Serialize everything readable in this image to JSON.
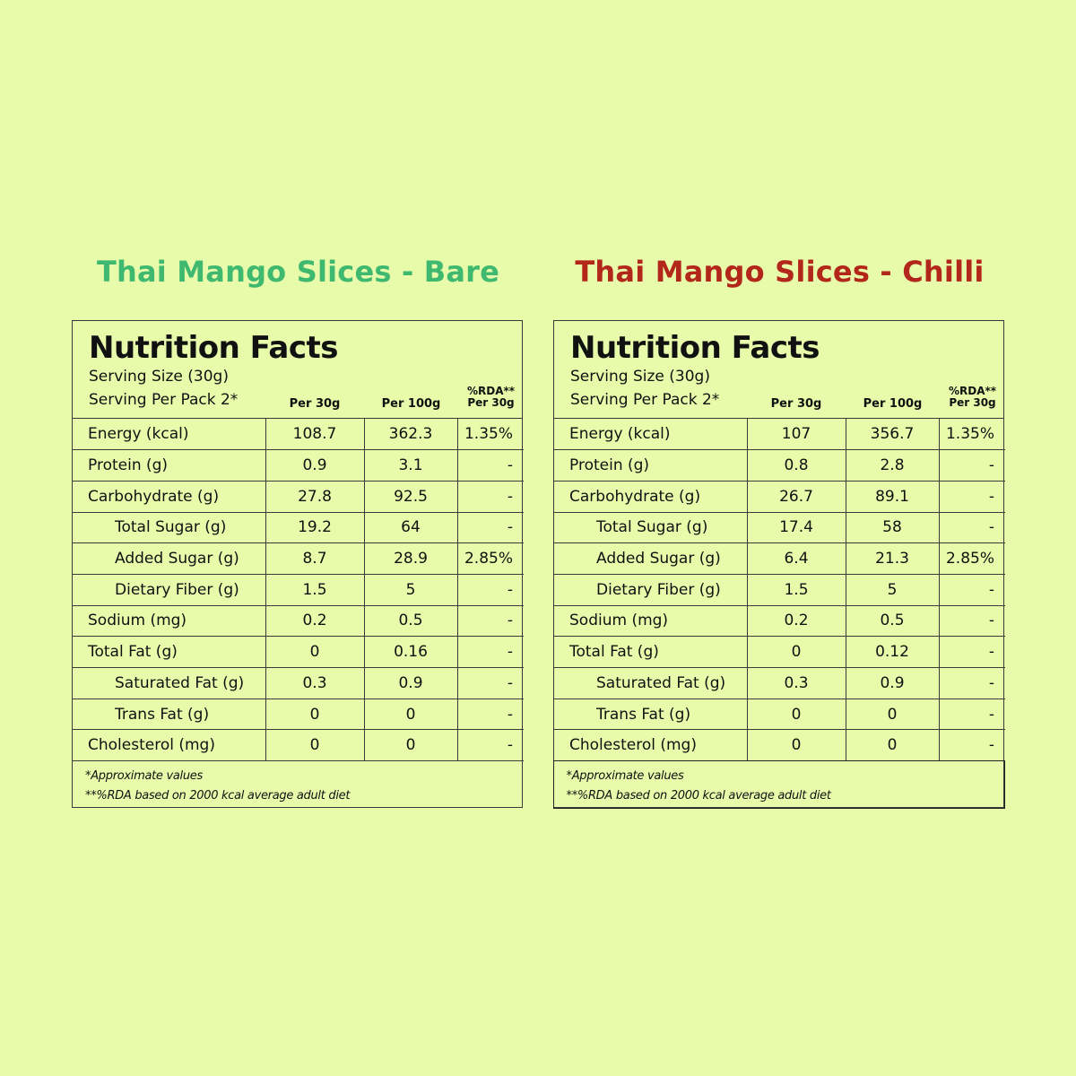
{
  "panels": [
    {
      "product_title": "Thai Mango Slices - Bare",
      "title_color": "#3fb96f",
      "heading": "Nutrition Facts",
      "serving_size": "Serving Size (30g)",
      "serving_per_pack": "Serving Per Pack  2*",
      "col_headers": [
        "Per 30g",
        "Per 100g",
        "%RDA**",
        "Per 30g"
      ],
      "rows": [
        {
          "label": "Energy (kcal)",
          "per30": "108.7",
          "per100": "362.3",
          "rda": "1.35%",
          "indent": false
        },
        {
          "label": "Protein (g)",
          "per30": "0.9",
          "per100": "3.1",
          "rda": "-",
          "indent": false
        },
        {
          "label": "Carbohydrate (g)",
          "per30": "27.8",
          "per100": "92.5",
          "rda": "-",
          "indent": false
        },
        {
          "label": "Total Sugar (g)",
          "per30": "19.2",
          "per100": "64",
          "rda": "-",
          "indent": true
        },
        {
          "label": "Added Sugar (g)",
          "per30": "8.7",
          "per100": "28.9",
          "rda": "2.85%",
          "indent": true
        },
        {
          "label": "Dietary Fiber (g)",
          "per30": "1.5",
          "per100": "5",
          "rda": "-",
          "indent": true
        },
        {
          "label": "Sodium (mg)",
          "per30": "0.2",
          "per100": "0.5",
          "rda": "-",
          "indent": false
        },
        {
          "label": "Total Fat (g)",
          "per30": "0",
          "per100": "0.16",
          "rda": "-",
          "indent": false
        },
        {
          "label": "Saturated Fat (g)",
          "per30": "0.3",
          "per100": "0.9",
          "rda": "-",
          "indent": true
        },
        {
          "label": "Trans Fat (g)",
          "per30": "0",
          "per100": "0",
          "rda": "-",
          "indent": true
        },
        {
          "label": "Cholesterol (mg)",
          "per30": "0",
          "per100": "0",
          "rda": "-",
          "indent": false
        }
      ],
      "footnote1": "*Approximate values",
      "footnote2": "**%RDA based on 2000  kcal average adult diet"
    },
    {
      "product_title": "Thai Mango Slices - Chilli",
      "title_color": "#b3271b",
      "heading": "Nutrition Facts",
      "serving_size": "Serving Size (30g)",
      "serving_per_pack": "Serving Per Pack  2*",
      "col_headers": [
        "Per 30g",
        "Per 100g",
        "%RDA**",
        "Per 30g"
      ],
      "rows": [
        {
          "label": "Energy (kcal)",
          "per30": "107",
          "per100": "356.7",
          "rda": "1.35%",
          "indent": false
        },
        {
          "label": "Protein (g)",
          "per30": "0.8",
          "per100": "2.8",
          "rda": "-",
          "indent": false
        },
        {
          "label": "Carbohydrate (g)",
          "per30": "26.7",
          "per100": "89.1",
          "rda": "-",
          "indent": false
        },
        {
          "label": "Total Sugar (g)",
          "per30": "17.4",
          "per100": "58",
          "rda": "-",
          "indent": true
        },
        {
          "label": "Added Sugar (g)",
          "per30": "6.4",
          "per100": "21.3",
          "rda": "2.85%",
          "indent": true
        },
        {
          "label": "Dietary Fiber (g)",
          "per30": "1.5",
          "per100": "5",
          "rda": "-",
          "indent": true
        },
        {
          "label": "Sodium (mg)",
          "per30": "0.2",
          "per100": "0.5",
          "rda": "-",
          "indent": false
        },
        {
          "label": "Total Fat (g)",
          "per30": "0",
          "per100": "0.12",
          "rda": "-",
          "indent": false
        },
        {
          "label": "Saturated Fat (g)",
          "per30": "0.3",
          "per100": "0.9",
          "rda": "-",
          "indent": true
        },
        {
          "label": "Trans Fat (g)",
          "per30": "0",
          "per100": "0",
          "rda": "-",
          "indent": true
        },
        {
          "label": "Cholesterol (mg)",
          "per30": "0",
          "per100": "0",
          "rda": "-",
          "indent": false
        }
      ],
      "footnote1": "*Approximate values",
      "footnote2": "**%RDA based on 2000  kcal average adult diet"
    }
  ]
}
